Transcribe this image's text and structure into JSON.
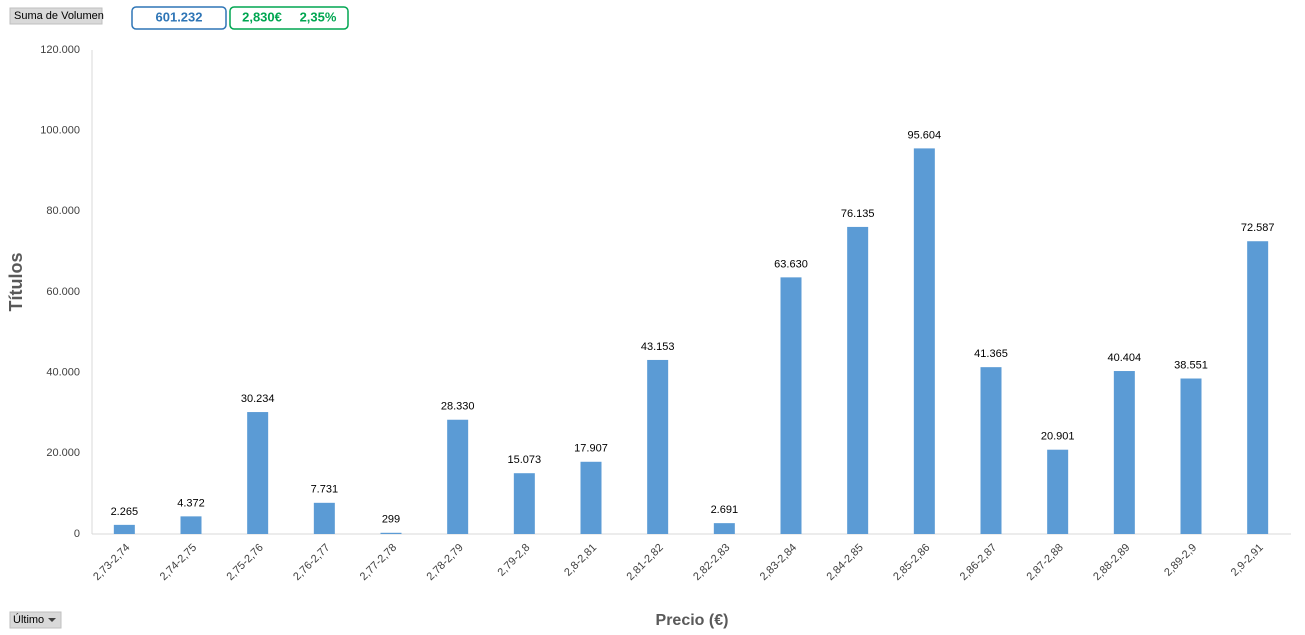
{
  "controls": {
    "field_button": "Suma de Volumen",
    "total_box": "601.232",
    "price_box": "2,830€",
    "change_box": "2,35%",
    "dropdown": "Último"
  },
  "chart_data": {
    "type": "bar",
    "x_label": "Precio (€)",
    "y_label": "Títulos",
    "categories": [
      "2,73-2,74",
      "2,74-2,75",
      "2,75-2,76",
      "2,76-2,77",
      "2,77-2,78",
      "2,78-2,79",
      "2,79-2,8",
      "2,8-2,81",
      "2,81-2,82",
      "2,82-2,83",
      "2,83-2,84",
      "2,84-2,85",
      "2,85-2,86",
      "2,86-2,87",
      "2,87-2,88",
      "2,88-2,89",
      "2,89-2,9",
      "2,9-2,91"
    ],
    "values": [
      2265,
      4372,
      30234,
      7731,
      299,
      28330,
      15073,
      17907,
      43153,
      2691,
      63630,
      76135,
      95604,
      41365,
      20901,
      40404,
      38551,
      72587
    ],
    "value_labels": [
      "2.265",
      "4.372",
      "30.234",
      "7.731",
      "299",
      "28.330",
      "15.073",
      "17.907",
      "43.153",
      "2.691",
      "63.630",
      "76.135",
      "95.604",
      "41.365",
      "20.901",
      "40.404",
      "38.551",
      "72.587"
    ],
    "color": "#5b9bd5",
    "ylim": [
      0,
      120000
    ],
    "yticks": [
      0,
      {
        "value": 20000,
        "label": "20.000"
      },
      {
        "value": 40000,
        "label": "40.000"
      },
      {
        "value": 60000,
        "label": "60.000"
      },
      {
        "value": 80000,
        "label": "80.000"
      },
      {
        "value": 100000,
        "label": "100.000"
      },
      {
        "value": 120000,
        "label": "120.000"
      }
    ],
    "grid": false
  }
}
